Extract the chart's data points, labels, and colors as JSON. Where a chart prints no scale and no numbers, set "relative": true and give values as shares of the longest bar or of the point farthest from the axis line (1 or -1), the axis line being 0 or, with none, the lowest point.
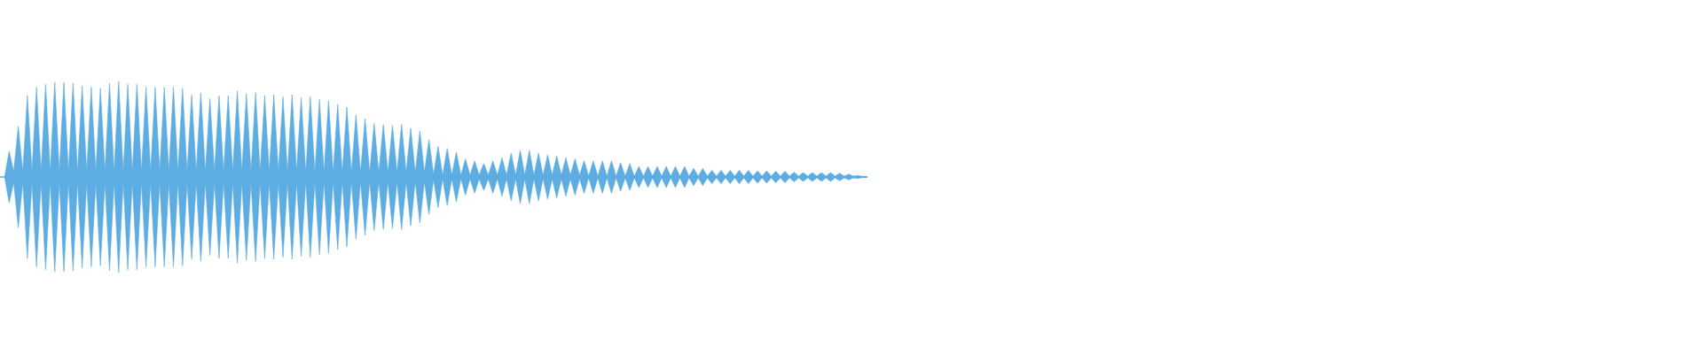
{
  "chart_data": {
    "type": "area",
    "relative": true,
    "categories": [
      null,
      null,
      null,
      null,
      null,
      null,
      null,
      null,
      null,
      null,
      null,
      null,
      null,
      null,
      null,
      null,
      null,
      null,
      null,
      null,
      null,
      null,
      null,
      null,
      null,
      null,
      null,
      null,
      null,
      null,
      null,
      null,
      null,
      null,
      null,
      null,
      null,
      null,
      null,
      null,
      null,
      null,
      null,
      null,
      null,
      null,
      null,
      null,
      null,
      null,
      null,
      null,
      null,
      null,
      null,
      null,
      null,
      null,
      null,
      null,
      null,
      null,
      null,
      null,
      null,
      null,
      null,
      null,
      null,
      null,
      null,
      null,
      null,
      null,
      null,
      null,
      null,
      null,
      null,
      null,
      null,
      null,
      null,
      null,
      null,
      null,
      null,
      null,
      null,
      null,
      null,
      null,
      null,
      null,
      null,
      null,
      null,
      null,
      null,
      null,
      null,
      null,
      null,
      null,
      null,
      null,
      null,
      null,
      null,
      null,
      null,
      null,
      null,
      null,
      null,
      null,
      null,
      null,
      null,
      null,
      null,
      null,
      null,
      null,
      null,
      null,
      null,
      null,
      null,
      null,
      null,
      null,
      null,
      null,
      null,
      null,
      null,
      null,
      null,
      null,
      null,
      null,
      null,
      null,
      null,
      null,
      null,
      null,
      null,
      null,
      null,
      null,
      null,
      null,
      null,
      null,
      null,
      null,
      null,
      null,
      null,
      null,
      null,
      null,
      null,
      null,
      null,
      null,
      null,
      null,
      null,
      null,
      null,
      null,
      null,
      null,
      null,
      null,
      null,
      null,
      null,
      null,
      null,
      null,
      null,
      null,
      null,
      null,
      null,
      null
    ],
    "series": [
      {
        "color": "#5dade2",
        "values": [
          0,
          0.27,
          0.06,
          0.53,
          0.06,
          0.85,
          0.06,
          0.94,
          0.06,
          0.97,
          0.06,
          0.99,
          0.06,
          0.99,
          0.06,
          0.98,
          0.06,
          0.95,
          0.06,
          0.94,
          0.06,
          0.93,
          0.06,
          0.98,
          0.06,
          1.0,
          0.06,
          0.97,
          0.06,
          0.97,
          0.06,
          0.94,
          0.06,
          0.94,
          0.06,
          0.94,
          0.06,
          0.94,
          0.06,
          0.93,
          0.06,
          0.86,
          0.06,
          0.88,
          0.06,
          0.82,
          0.06,
          0.85,
          0.06,
          0.85,
          0.06,
          0.9,
          0.06,
          0.87,
          0.06,
          0.88,
          0.06,
          0.85,
          0.06,
          0.86,
          0.06,
          0.84,
          0.06,
          0.86,
          0.06,
          0.83,
          0.05,
          0.84,
          0.05,
          0.81,
          0.05,
          0.8,
          0.05,
          0.76,
          0.05,
          0.73,
          0.05,
          0.65,
          0.05,
          0.61,
          0.05,
          0.56,
          0.05,
          0.55,
          0.05,
          0.54,
          0.05,
          0.55,
          0.05,
          0.51,
          0.05,
          0.48,
          0.05,
          0.39,
          0.03,
          0.32,
          0.02,
          0.3,
          0.02,
          0.26,
          0.02,
          0.19,
          0.02,
          0.17,
          0.02,
          0.14,
          0.02,
          0.17,
          0.02,
          0.2,
          0.02,
          0.25,
          0.02,
          0.28,
          0.02,
          0.28,
          0.02,
          0.25,
          0.02,
          0.23,
          0.02,
          0.22,
          0.02,
          0.2,
          0.02,
          0.19,
          0.02,
          0.17,
          0.01,
          0.17,
          0.01,
          0.17,
          0.01,
          0.17,
          0.01,
          0.15,
          0.01,
          0.14,
          0.01,
          0.11,
          0.01,
          0.11,
          0.01,
          0.11,
          0.01,
          0.11,
          0.01,
          0.11,
          0.01,
          0.11,
          0.01,
          0.09,
          0.01,
          0.09,
          0.01,
          0.07,
          0.01,
          0.07,
          0.01,
          0.07,
          0.01,
          0.07,
          0.01,
          0.07,
          0.01,
          0.065,
          0.01,
          0.065,
          0.01,
          0.06,
          0.01,
          0.06,
          0.01,
          0.05,
          0.01,
          0.046,
          0.01,
          0.046,
          0.01,
          0.046,
          0.01,
          0.046,
          0.01,
          0.04,
          0.01,
          0.03,
          0.01,
          0.016,
          0.005,
          0.005
        ]
      },
      {
        "color": "#5dade2",
        "values": [
          0,
          -0.27,
          -0.06,
          -0.53,
          -0.06,
          -0.85,
          -0.06,
          -0.94,
          -0.06,
          -0.97,
          -0.06,
          -0.99,
          -0.06,
          -0.99,
          -0.06,
          -0.98,
          -0.06,
          -0.95,
          -0.06,
          -0.94,
          -0.06,
          -0.93,
          -0.06,
          -0.98,
          -0.06,
          -1.0,
          -0.06,
          -0.97,
          -0.06,
          -0.97,
          -0.06,
          -0.94,
          -0.06,
          -0.94,
          -0.06,
          -0.94,
          -0.06,
          -0.94,
          -0.06,
          -0.93,
          -0.06,
          -0.86,
          -0.06,
          -0.88,
          -0.06,
          -0.82,
          -0.06,
          -0.85,
          -0.06,
          -0.85,
          -0.06,
          -0.9,
          -0.06,
          -0.87,
          -0.06,
          -0.88,
          -0.06,
          -0.85,
          -0.06,
          -0.86,
          -0.06,
          -0.84,
          -0.06,
          -0.86,
          -0.06,
          -0.83,
          -0.05,
          -0.84,
          -0.05,
          -0.81,
          -0.05,
          -0.8,
          -0.05,
          -0.76,
          -0.05,
          -0.73,
          -0.05,
          -0.65,
          -0.05,
          -0.61,
          -0.05,
          -0.56,
          -0.05,
          -0.55,
          -0.05,
          -0.54,
          -0.05,
          -0.55,
          -0.05,
          -0.51,
          -0.05,
          -0.48,
          -0.05,
          -0.39,
          -0.03,
          -0.32,
          -0.02,
          -0.3,
          -0.02,
          -0.26,
          -0.02,
          -0.19,
          -0.02,
          -0.17,
          -0.02,
          -0.14,
          -0.02,
          -0.17,
          -0.02,
          -0.2,
          -0.02,
          -0.25,
          -0.02,
          -0.28,
          -0.02,
          -0.28,
          -0.02,
          -0.25,
          -0.02,
          -0.23,
          -0.02,
          -0.22,
          -0.02,
          -0.2,
          -0.02,
          -0.19,
          -0.02,
          -0.17,
          -0.01,
          -0.17,
          -0.01,
          -0.17,
          -0.01,
          -0.17,
          -0.01,
          -0.15,
          -0.01,
          -0.14,
          -0.01,
          -0.11,
          -0.01,
          -0.11,
          -0.01,
          -0.11,
          -0.01,
          -0.11,
          -0.01,
          -0.11,
          -0.01,
          -0.11,
          -0.01,
          -0.09,
          -0.01,
          -0.09,
          -0.01,
          -0.07,
          -0.01,
          -0.07,
          -0.01,
          -0.07,
          -0.01,
          -0.07,
          -0.01,
          -0.07,
          -0.01,
          -0.065,
          -0.01,
          -0.065,
          -0.01,
          -0.06,
          -0.01,
          -0.06,
          -0.01,
          -0.05,
          -0.01,
          -0.046,
          -0.01,
          -0.046,
          -0.01,
          -0.046,
          -0.01,
          -0.046,
          -0.01,
          -0.04,
          -0.01,
          -0.03,
          -0.01,
          -0.016,
          -0.005,
          -0.005
        ]
      }
    ]
  }
}
